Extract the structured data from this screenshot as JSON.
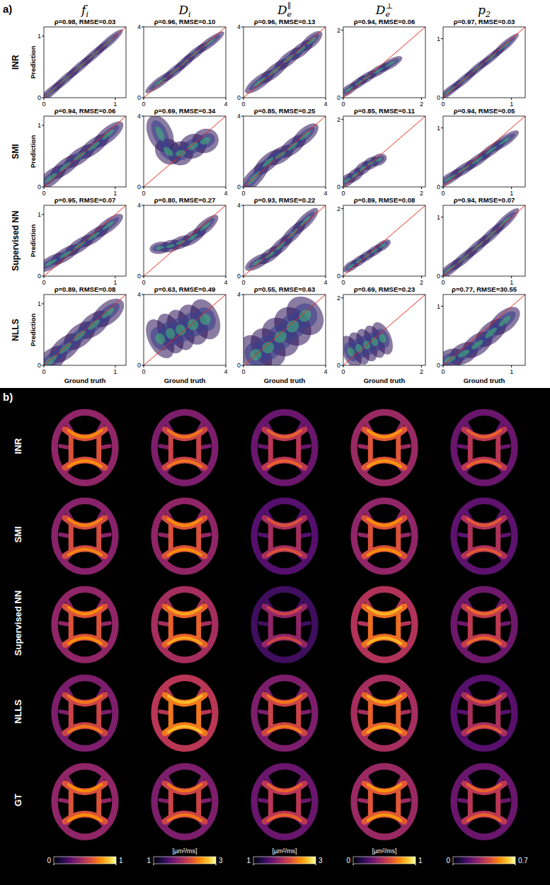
{
  "chart_data": [
    {
      "type": "scatter",
      "title": "ρ=0.98, RMSE=0.03",
      "ylabel": "Prediction",
      "xlim": [
        0,
        1.15
      ],
      "ylim": [
        0,
        1.15
      ],
      "xticks": [
        0,
        1
      ],
      "yticks": [
        0,
        1
      ],
      "x": [
        0.1,
        0.3,
        0.5,
        0.7,
        0.9
      ],
      "values": [
        0.1,
        0.3,
        0.5,
        0.7,
        0.9
      ],
      "spread": [
        0.04,
        0.04,
        0.04,
        0.04,
        0.04
      ]
    },
    {
      "type": "scatter",
      "title": "ρ=0.96, RMSE=0.10",
      "xlim": [
        0,
        4
      ],
      "ylim": [
        0,
        4
      ],
      "xticks": [
        0,
        4
      ],
      "yticks": [
        0,
        4
      ],
      "x": [
        0.8,
        1.5,
        2.0,
        2.5,
        3.2
      ],
      "values": [
        0.9,
        1.5,
        2.0,
        2.5,
        3.1
      ],
      "spread": [
        0.15,
        0.15,
        0.15,
        0.15,
        0.15
      ]
    },
    {
      "type": "scatter",
      "title": "ρ=0.96, RMSE=0.13",
      "xlim": [
        0,
        4
      ],
      "ylim": [
        0,
        4
      ],
      "xticks": [
        0,
        4
      ],
      "yticks": [
        0,
        4
      ],
      "x": [
        0.8,
        1.5,
        2.2,
        2.8,
        3.3
      ],
      "values": [
        0.9,
        1.5,
        2.2,
        2.7,
        3.2
      ],
      "spread": [
        0.2,
        0.2,
        0.2,
        0.2,
        0.2
      ]
    },
    {
      "type": "scatter",
      "title": "ρ=0.94, RMSE=0.06",
      "xlim": [
        0,
        2.1
      ],
      "ylim": [
        0,
        2.1
      ],
      "xticks": [
        0,
        2
      ],
      "yticks": [
        0,
        2
      ],
      "x": [
        0.15,
        0.4,
        0.6,
        0.9,
        1.2
      ],
      "values": [
        0.25,
        0.45,
        0.6,
        0.8,
        1.0
      ],
      "spread": [
        0.08,
        0.08,
        0.08,
        0.08,
        0.08
      ]
    },
    {
      "type": "scatter",
      "title": "ρ=0.97, RMSE=0.03",
      "xlim": [
        0,
        1.2
      ],
      "ylim": [
        0,
        1.2
      ],
      "xticks": [
        0,
        1
      ],
      "yticks": [
        0,
        1
      ],
      "x": [
        0.1,
        0.3,
        0.5,
        0.7,
        0.9
      ],
      "values": [
        0.12,
        0.3,
        0.5,
        0.68,
        0.88
      ],
      "spread": [
        0.04,
        0.04,
        0.04,
        0.04,
        0.04
      ]
    },
    {
      "type": "scatter",
      "title": "ρ=0.94, RMSE=0.06",
      "ylabel": "Prediction",
      "xlim": [
        0,
        1.15
      ],
      "ylim": [
        0,
        1.15
      ],
      "xticks": [
        0,
        1
      ],
      "yticks": [
        0,
        1
      ],
      "x": [
        0.1,
        0.3,
        0.5,
        0.7,
        0.9
      ],
      "values": [
        0.15,
        0.33,
        0.5,
        0.66,
        0.85
      ],
      "spread": [
        0.07,
        0.07,
        0.07,
        0.07,
        0.07
      ]
    },
    {
      "type": "scatter",
      "title": "ρ=0.69, RMSE=0.34",
      "xlim": [
        0,
        4
      ],
      "ylim": [
        0,
        4
      ],
      "xticks": [
        0,
        4
      ],
      "yticks": [
        0,
        4
      ],
      "x": [
        0.8,
        1.2,
        1.8,
        2.4,
        3.0
      ],
      "values": [
        3.0,
        2.0,
        1.9,
        2.3,
        2.6
      ],
      "spread": [
        0.4,
        0.4,
        0.4,
        0.4,
        0.4
      ]
    },
    {
      "type": "scatter",
      "title": "ρ=0.85, RMSE=0.25",
      "xlim": [
        0,
        4
      ],
      "ylim": [
        0,
        4
      ],
      "xticks": [
        0,
        4
      ],
      "yticks": [
        0,
        4
      ],
      "x": [
        0.5,
        1.2,
        1.8,
        2.4,
        3.0
      ],
      "values": [
        0.5,
        1.4,
        1.8,
        2.3,
        2.9
      ],
      "spread": [
        0.25,
        0.25,
        0.25,
        0.25,
        0.25
      ]
    },
    {
      "type": "scatter",
      "title": "ρ=0.85, RMSE=0.11",
      "xlim": [
        0,
        2.1
      ],
      "ylim": [
        0,
        2.1
      ],
      "xticks": [
        0,
        2
      ],
      "yticks": [
        0,
        2
      ],
      "x": [
        0.1,
        0.3,
        0.5,
        0.7,
        0.9
      ],
      "values": [
        0.2,
        0.35,
        0.55,
        0.7,
        0.8
      ],
      "spread": [
        0.1,
        0.1,
        0.1,
        0.1,
        0.1
      ]
    },
    {
      "type": "scatter",
      "title": "ρ=0.94, RMSE=0.05",
      "xlim": [
        0,
        1.2
      ],
      "ylim": [
        0,
        1.2
      ],
      "xticks": [
        0,
        1
      ],
      "yticks": [
        0,
        1
      ],
      "x": [
        0.1,
        0.3,
        0.5,
        0.7,
        0.9
      ],
      "values": [
        0.15,
        0.3,
        0.45,
        0.62,
        0.78
      ],
      "spread": [
        0.05,
        0.05,
        0.05,
        0.05,
        0.05
      ]
    },
    {
      "type": "scatter",
      "title": "ρ=0.95, RMSE=0.07",
      "ylabel": "Prediction",
      "xlim": [
        0,
        1.15
      ],
      "ylim": [
        0,
        1.15
      ],
      "xticks": [
        0,
        1
      ],
      "yticks": [
        0,
        1
      ],
      "x": [
        0.1,
        0.3,
        0.5,
        0.7,
        0.9
      ],
      "values": [
        0.22,
        0.35,
        0.5,
        0.65,
        0.82
      ],
      "spread": [
        0.06,
        0.06,
        0.06,
        0.06,
        0.06
      ]
    },
    {
      "type": "scatter",
      "title": "ρ=0.80, RMSE=0.27",
      "xlim": [
        0,
        4
      ],
      "ylim": [
        0,
        4
      ],
      "xticks": [
        0,
        4
      ],
      "yticks": [
        0,
        4
      ],
      "x": [
        0.8,
        1.3,
        1.8,
        2.4,
        3.0
      ],
      "values": [
        1.6,
        1.7,
        1.9,
        2.2,
        2.8
      ],
      "spread": [
        0.2,
        0.2,
        0.2,
        0.2,
        0.2
      ]
    },
    {
      "type": "scatter",
      "title": "ρ=0.93, RMSE=0.22",
      "xlim": [
        0,
        4
      ],
      "ylim": [
        0,
        4
      ],
      "xticks": [
        0,
        4
      ],
      "yticks": [
        0,
        4
      ],
      "x": [
        0.7,
        1.3,
        1.8,
        2.4,
        3.0
      ],
      "values": [
        0.8,
        1.2,
        1.7,
        2.4,
        3.1
      ],
      "spread": [
        0.2,
        0.2,
        0.2,
        0.2,
        0.2
      ]
    },
    {
      "type": "scatter",
      "title": "ρ=0.89, RMSE=0.08",
      "xlim": [
        0,
        2.1
      ],
      "ylim": [
        0,
        2.1
      ],
      "xticks": [
        0,
        2
      ],
      "yticks": [
        0,
        2
      ],
      "x": [
        0.2,
        0.4,
        0.6,
        0.8,
        1.0
      ],
      "values": [
        0.3,
        0.45,
        0.6,
        0.75,
        0.9
      ],
      "spread": [
        0.08,
        0.08,
        0.08,
        0.08,
        0.08
      ]
    },
    {
      "type": "scatter",
      "title": "ρ=0.94, RMSE=0.07",
      "xlim": [
        0,
        1.2
      ],
      "ylim": [
        0,
        1.2
      ],
      "xticks": [
        0,
        1
      ],
      "yticks": [
        0,
        1
      ],
      "x": [
        0.1,
        0.3,
        0.5,
        0.7,
        0.9
      ],
      "values": [
        0.12,
        0.3,
        0.5,
        0.7,
        0.92
      ],
      "spread": [
        0.05,
        0.05,
        0.05,
        0.05,
        0.05
      ]
    },
    {
      "type": "scatter",
      "title": "ρ=0.89, RMSE=0.08",
      "ylabel": "Prediction",
      "xlabel": "Ground truth",
      "xlim": [
        0,
        1.15
      ],
      "ylim": [
        0,
        1.15
      ],
      "xticks": [
        0,
        1
      ],
      "yticks": [
        0,
        1
      ],
      "x": [
        0.1,
        0.3,
        0.5,
        0.7,
        0.9
      ],
      "values": [
        0.08,
        0.28,
        0.48,
        0.66,
        0.85
      ],
      "spread": [
        0.1,
        0.1,
        0.1,
        0.1,
        0.1
      ]
    },
    {
      "type": "scatter",
      "title": "ρ=0.63, RMSE=0.49",
      "xlabel": "Ground truth",
      "xlim": [
        0,
        4
      ],
      "ylim": [
        0,
        4
      ],
      "xticks": [
        0,
        4
      ],
      "yticks": [
        0,
        4
      ],
      "x": [
        0.8,
        1.3,
        1.8,
        2.4,
        3.0
      ],
      "values": [
        1.5,
        1.8,
        2.0,
        2.3,
        2.6
      ],
      "spread": [
        0.7,
        0.7,
        0.7,
        0.7,
        0.7
      ]
    },
    {
      "type": "scatter",
      "title": "ρ=0.55, RMSE=0.63",
      "xlabel": "Ground truth",
      "xlim": [
        0,
        4
      ],
      "ylim": [
        0,
        4
      ],
      "xticks": [
        0,
        4
      ],
      "yticks": [
        0,
        4
      ],
      "x": [
        0.6,
        1.2,
        1.8,
        2.4,
        3.0
      ],
      "values": [
        0.6,
        1.0,
        1.6,
        2.2,
        2.8
      ],
      "spread": [
        0.7,
        0.7,
        0.7,
        0.7,
        0.7
      ]
    },
    {
      "type": "scatter",
      "title": "ρ=0.69, RMSE=0.23",
      "xlabel": "Ground truth",
      "xlim": [
        0,
        2.1
      ],
      "ylim": [
        0,
        2.1
      ],
      "xticks": [
        0,
        2
      ],
      "yticks": [
        0,
        2
      ],
      "x": [
        0.2,
        0.4,
        0.6,
        0.8,
        1.0
      ],
      "values": [
        0.4,
        0.5,
        0.6,
        0.7,
        0.8
      ],
      "spread": [
        0.3,
        0.3,
        0.3,
        0.3,
        0.3
      ]
    },
    {
      "type": "scatter",
      "title": "ρ=0.77, RMSE=30.55",
      "xlabel": "Ground truth",
      "xlim": [
        0,
        1.2
      ],
      "ylim": [
        0,
        1.2
      ],
      "xticks": [
        0,
        1
      ],
      "yticks": [
        0,
        1
      ],
      "x": [
        0.1,
        0.3,
        0.5,
        0.7,
        0.9
      ],
      "values": [
        0.1,
        0.2,
        0.35,
        0.55,
        0.75
      ],
      "spread": [
        0.1,
        0.1,
        0.1,
        0.1,
        0.1
      ]
    }
  ],
  "figure": {
    "panel_labels": [
      "a)",
      "b)"
    ],
    "columns": [
      {
        "base": "f",
        "sub": "i"
      },
      {
        "base": "D",
        "sub": "i"
      },
      {
        "base": "D",
        "sub": "e",
        "sup": "∥"
      },
      {
        "base": "D",
        "sub": "e",
        "sup": "⊥"
      },
      {
        "base": "p",
        "sub": "2"
      }
    ],
    "rows_a": [
      "INR",
      "SMI",
      "Supervised NN",
      "NLLS"
    ],
    "maps": [
      {
        "label": "INR",
        "levels": [
          0.6,
          2.1,
          2.0,
          0.62,
          0.35
        ]
      },
      {
        "label": "SMI",
        "levels": [
          0.58,
          2.2,
          1.9,
          0.6,
          0.33
        ]
      },
      {
        "label": "Supervised NN",
        "levels": [
          0.6,
          2.3,
          1.8,
          0.68,
          0.36
        ]
      },
      {
        "label": "NLLS",
        "levels": [
          0.55,
          2.4,
          2.1,
          0.65,
          0.32
        ]
      },
      {
        "label": "GT",
        "levels": [
          0.6,
          2.1,
          2.0,
          0.62,
          0.35
        ]
      }
    ],
    "colorbars": [
      {
        "range": [
          0,
          1
        ],
        "ticks": [
          0,
          1
        ]
      },
      {
        "range": [
          1,
          3
        ],
        "ticks": [
          1,
          3
        ],
        "label": "[µm²/ms]"
      },
      {
        "range": [
          1,
          3
        ],
        "ticks": [
          1,
          3
        ],
        "label": "[µm²/ms]"
      },
      {
        "range": [
          0,
          1
        ],
        "ticks": [
          0,
          1
        ],
        "label": "[µm²/ms]"
      },
      {
        "range": [
          0,
          0.7
        ],
        "ticks": [
          0,
          0.7
        ]
      }
    ]
  }
}
